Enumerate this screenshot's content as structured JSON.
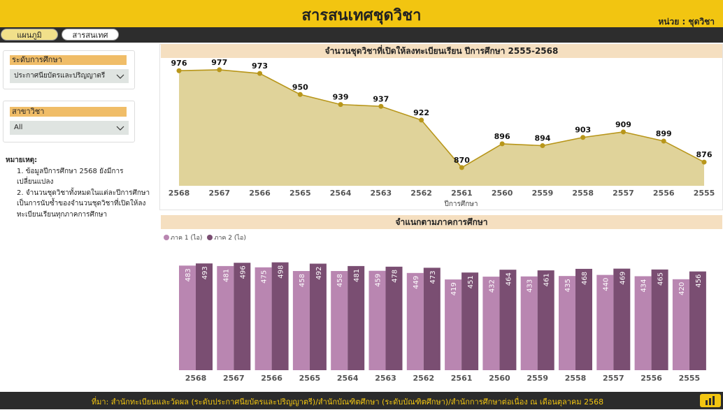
{
  "header": {
    "title": "สารสนเทศชุดวิชา",
    "unit": "หน่วย : ชุดวิชา"
  },
  "nav": {
    "tab_map": "แผนภูมิ",
    "tab_info": "สารสนเทศ"
  },
  "filters": {
    "level": {
      "label": "ระดับการศึกษา",
      "value": "ประกาศนียบัตรและปริญญาตรี"
    },
    "major": {
      "label": "สาขาวิชา",
      "value": "All"
    }
  },
  "note": {
    "title": "หมายเหตุ:",
    "line1": "1. ข้อมูลปีการศึกษา 2568 ยังมีการเปลี่ยนแปลง",
    "line2": "2. จำนวนชุดวิชาทั้งหมดในแต่ละปีการศึกษา เป็นการนับซ้ำของจำนวนชุดวิชาที่เปิดให้ลงทะเบียนเรียนทุกภาคการศึกษา"
  },
  "footer": {
    "source": "ที่มา: สำนักทะเบียนและวัดผล (ระดับประกาศนียบัตรและปริญญาตรี)/สำนักบัณฑิตศึกษา (ระดับบัณฑิตศึกษา)/สำนักการศึกษาต่อเนื่อง ณ เดือนตุลาคม 2568"
  },
  "colors": {
    "header": "#f2c511",
    "area_fill": "#e0d39a",
    "line": "#b8961a",
    "sem1": "#b986b1",
    "sem2": "#7a4e72"
  },
  "chart_data": [
    {
      "type": "area",
      "title": "จำนวนชุดวิชาที่เปิดให้ลงทะเบียนเรียน ปีการศึกษา 2555-2568",
      "xlabel": "ปีการศึกษา",
      "categories": [
        "2568",
        "2567",
        "2566",
        "2565",
        "2564",
        "2563",
        "2562",
        "2561",
        "2560",
        "2559",
        "2558",
        "2557",
        "2556",
        "2555"
      ],
      "values": [
        976,
        977,
        973,
        950,
        939,
        937,
        922,
        870,
        896,
        894,
        903,
        909,
        899,
        876
      ]
    },
    {
      "type": "bar",
      "title": "จำแนกตามภาคการศึกษา",
      "categories": [
        "2568",
        "2567",
        "2566",
        "2565",
        "2564",
        "2563",
        "2562",
        "2561",
        "2560",
        "2559",
        "2558",
        "2557",
        "2556",
        "2555"
      ],
      "series": [
        {
          "name": "ภาค 1 (ไอ)",
          "values": [
            483,
            481,
            475,
            458,
            458,
            459,
            449,
            419,
            432,
            433,
            435,
            440,
            434,
            420
          ]
        },
        {
          "name": "ภาค 2 (ไอ)",
          "values": [
            493,
            496,
            498,
            492,
            481,
            478,
            473,
            451,
            464,
            461,
            468,
            469,
            465,
            456
          ]
        }
      ],
      "legend": "top-left"
    }
  ]
}
